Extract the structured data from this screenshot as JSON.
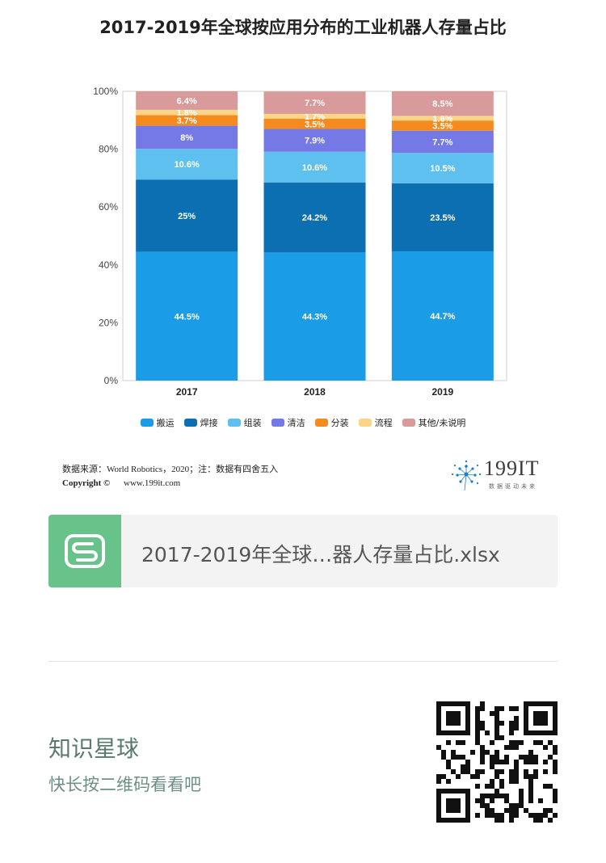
{
  "title": "2017-2019年全球按应用分布的工业机器人存量占比",
  "chart_data": {
    "type": "bar",
    "stacked": true,
    "categories": [
      "2017",
      "2018",
      "2019"
    ],
    "ylim": [
      0,
      100
    ],
    "yticks": [
      "0%",
      "20%",
      "40%",
      "60%",
      "80%",
      "100%"
    ],
    "grid": false,
    "legend_position": "bottom",
    "series": [
      {
        "name": "搬运",
        "color": "#1a9ce6",
        "values": [
          44.5,
          44.3,
          44.7
        ],
        "labels": [
          "44.5%",
          "44.3%",
          "44.7%"
        ]
      },
      {
        "name": "焊接",
        "color": "#0b6fb1",
        "values": [
          25,
          24.2,
          23.5
        ],
        "labels": [
          "25%",
          "24.2%",
          "23.5%"
        ]
      },
      {
        "name": "组装",
        "color": "#5ec0ef",
        "values": [
          10.6,
          10.6,
          10.5
        ],
        "labels": [
          "10.6%",
          "10.6%",
          "10.5%"
        ]
      },
      {
        "name": "清洁",
        "color": "#7579e6",
        "values": [
          8,
          7.9,
          7.7
        ],
        "labels": [
          "8%",
          "7.9%",
          "7.7%"
        ]
      },
      {
        "name": "分装",
        "color": "#f58b1f",
        "values": [
          3.7,
          3.5,
          3.5
        ],
        "labels": [
          "3.7%",
          "3.5%",
          "3.5%"
        ]
      },
      {
        "name": "流程",
        "color": "#f9d585",
        "values": [
          1.8,
          1.7,
          1.6
        ],
        "labels": [
          "1.8%",
          "1.7%",
          "1.6%"
        ]
      },
      {
        "name": "其他/未说明",
        "color": "#d89a9a",
        "values": [
          6.4,
          7.7,
          8.5
        ],
        "labels": [
          "6.4%",
          "7.7%",
          "8.5%"
        ]
      }
    ]
  },
  "source": {
    "line": "数据来源：World Robotics，2020；注：数据有四舍五入",
    "copyright_label": "Copyright ©",
    "url": "www.199it.com"
  },
  "logo": {
    "text": "199IT",
    "subtitle": "数据驱动未来"
  },
  "file": {
    "name": "2017-2019年全球…器人存量占比.xlsx",
    "icon_glyph": "S"
  },
  "promo": {
    "title": "知识星球",
    "subtitle": "快长按二维码看看吧"
  }
}
